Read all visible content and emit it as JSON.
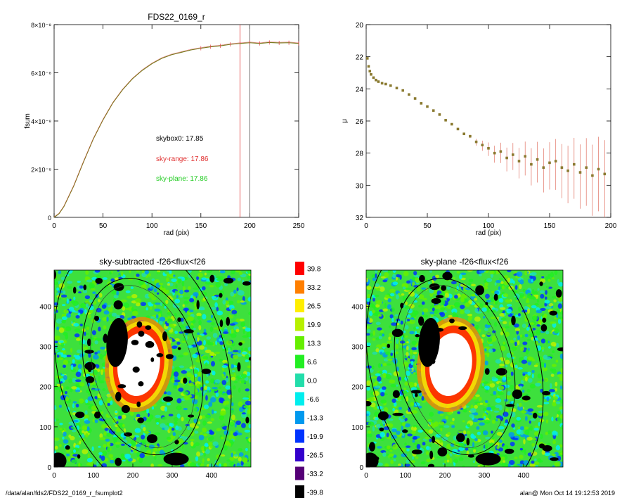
{
  "chart_data": [
    {
      "type": "line",
      "title": "FDS22_0169_r",
      "xlabel": "rad (pix)",
      "ylabel": "fsum",
      "xlim": [
        0,
        250
      ],
      "ylim": [
        0,
        8e-08
      ],
      "x_ticks": [
        "0",
        "50",
        "100",
        "150",
        "200",
        "250"
      ],
      "y_ticks": [
        {
          "value": 0,
          "label": "0"
        },
        {
          "value": 2e-08,
          "label": "2×10⁻⁸"
        },
        {
          "value": 4e-08,
          "label": "4×10⁻⁸"
        },
        {
          "value": 6e-08,
          "label": "6×10⁻⁸"
        },
        {
          "value": 8e-08,
          "label": "8×10⁻⁸"
        }
      ],
      "vertical_lines": [
        {
          "x": 190,
          "color": "#e03030"
        },
        {
          "x": 200,
          "color": "#555555"
        }
      ],
      "series": [
        {
          "color": "#7a7a20",
          "x": [
            0,
            5,
            10,
            20,
            30,
            40,
            50,
            60,
            70,
            80,
            90,
            100,
            110,
            120,
            130,
            140,
            150,
            160,
            170,
            180,
            190,
            200,
            210,
            220,
            230,
            240,
            250
          ],
          "y": [
            0,
            1.5e-09,
            4.5e-09,
            1.3e-08,
            2.3e-08,
            3.25e-08,
            4.05e-08,
            4.75e-08,
            5.3e-08,
            5.75e-08,
            6.1e-08,
            6.38e-08,
            6.6e-08,
            6.75e-08,
            6.85e-08,
            6.95e-08,
            7.02e-08,
            7.08e-08,
            7.12e-08,
            7.18e-08,
            7.22e-08,
            7.25e-08,
            7.22e-08,
            7.26e-08,
            7.24e-08,
            7.25e-08,
            7.22e-08
          ]
        }
      ],
      "annotations": [
        {
          "text": "skybox0: 17.85",
          "color": "#000000"
        },
        {
          "text": "sky-range: 17.86",
          "color": "#e03030"
        },
        {
          "text": "sky-plane: 17.86",
          "color": "#22cc22"
        }
      ]
    },
    {
      "type": "scatter",
      "xlabel": "rad (pix)",
      "ylabel": "μ",
      "xlim": [
        0,
        200
      ],
      "ylim": [
        32,
        20
      ],
      "x_ticks": [
        "0",
        "50",
        "100",
        "150",
        "200"
      ],
      "y_ticks": [
        "20",
        "22",
        "24",
        "26",
        "28",
        "30",
        "32"
      ],
      "series": [
        {
          "color": "#8a7a30",
          "x": [
            1,
            2,
            3,
            4,
            6,
            8,
            10,
            13,
            16,
            20,
            25,
            30,
            35,
            40,
            45,
            50,
            55,
            60,
            65,
            70,
            75,
            80,
            85,
            90,
            95,
            100,
            105,
            110,
            115,
            120,
            125,
            130,
            135,
            140,
            145,
            150,
            155,
            160,
            165,
            170,
            175,
            180,
            185,
            190,
            195
          ],
          "y": [
            22.1,
            22.6,
            22.9,
            23.1,
            23.3,
            23.45,
            23.55,
            23.65,
            23.7,
            23.8,
            23.95,
            24.1,
            24.35,
            24.6,
            24.9,
            25.1,
            25.35,
            25.6,
            25.95,
            26.2,
            26.5,
            26.8,
            26.95,
            27.3,
            27.5,
            27.7,
            28.0,
            27.9,
            28.3,
            28.1,
            28.5,
            28.2,
            28.7,
            28.4,
            28.9,
            28.6,
            28.5,
            28.9,
            29.1,
            28.7,
            29.2,
            28.9,
            29.4,
            29.0,
            29.3
          ]
        }
      ]
    },
    {
      "type": "heatmap",
      "title": "sky-subtracted -f26<flux<f26",
      "xlim": [
        0,
        500
      ],
      "ylim": [
        0,
        490
      ],
      "x_ticks": [
        "0",
        "100",
        "200",
        "300",
        "400"
      ],
      "y_ticks": [
        "0",
        "100",
        "200",
        "300",
        "400"
      ]
    },
    {
      "type": "heatmap",
      "title": "sky-plane -f26<flux<f26",
      "xlim": [
        0,
        500
      ],
      "ylim": [
        0,
        490
      ],
      "x_ticks": [
        "0",
        "100",
        "200",
        "300",
        "400"
      ],
      "y_ticks": [
        "0",
        "100",
        "200",
        "300",
        "400"
      ]
    }
  ],
  "colorbar": [
    {
      "label": "39.8",
      "color": "#ff0000"
    },
    {
      "label": "33.2",
      "color": "#ff7f00"
    },
    {
      "label": "26.5",
      "color": "#ffee00"
    },
    {
      "label": "19.9",
      "color": "#b7f000"
    },
    {
      "label": "13.3",
      "color": "#66ee00"
    },
    {
      "label": "6.6",
      "color": "#22ee22"
    },
    {
      "label": "0.0",
      "color": "#22ddaa"
    },
    {
      "label": "-6.6",
      "color": "#00eeee"
    },
    {
      "label": "-13.3",
      "color": "#0099ee"
    },
    {
      "label": "-19.9",
      "color": "#0033ff"
    },
    {
      "label": "-26.5",
      "color": "#3300cc"
    },
    {
      "label": "-33.2",
      "color": "#550077"
    },
    {
      "label": "-39.8",
      "color": "#000000"
    }
  ],
  "footer": {
    "left": "/data/alan/fds2/FDS22_0169_r_fsumplot2",
    "right": "alan@  Mon Oct 14 19:12:53 2019"
  }
}
